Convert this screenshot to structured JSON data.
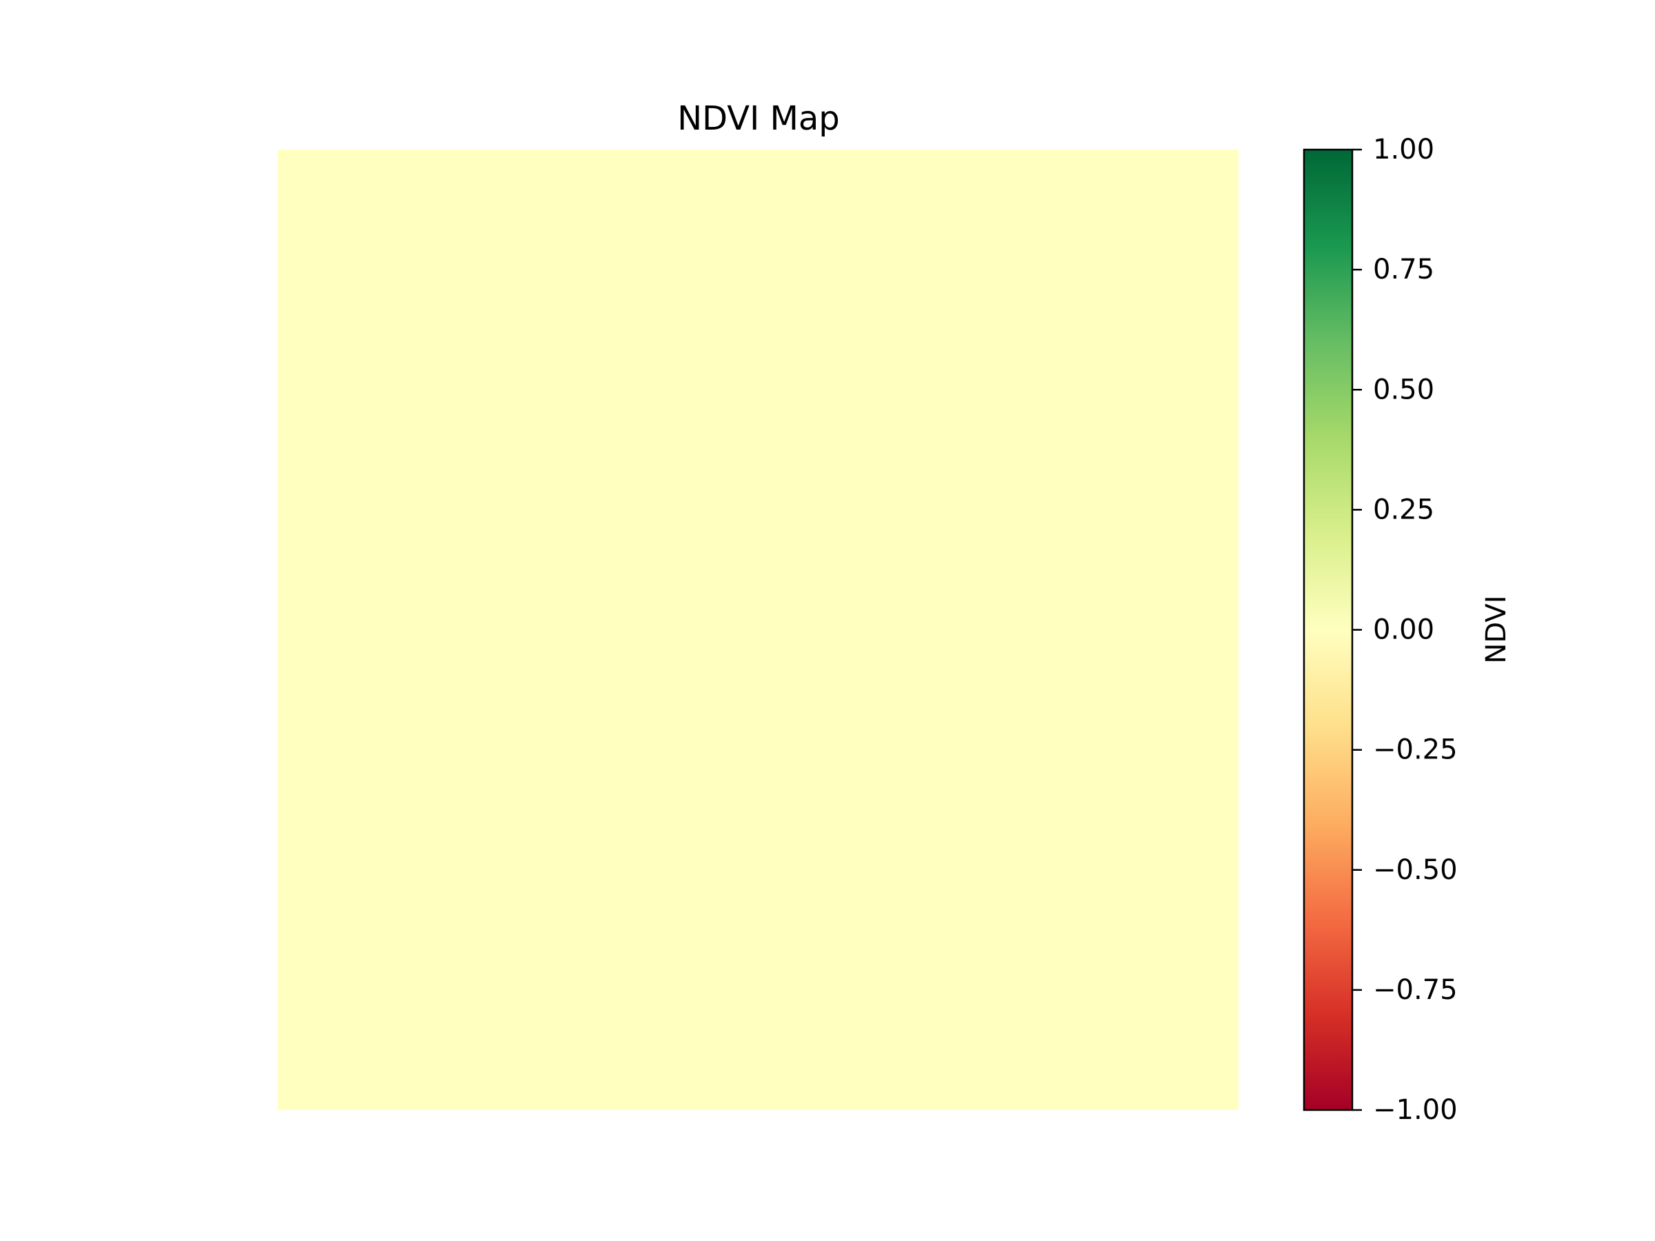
{
  "chart_data": {
    "type": "heatmap",
    "title": "NDVI Map",
    "values": [
      [
        0.0
      ]
    ],
    "colorbar": {
      "label": "NDVI",
      "colormap": "RdYlGn",
      "range": [
        -1.0,
        1.0
      ],
      "ticks": [
        1.0,
        0.75,
        0.5,
        0.25,
        0.0,
        -0.25,
        -0.5,
        -0.75,
        -1.0
      ],
      "tick_labels": [
        "1.00",
        "0.75",
        "0.50",
        "0.25",
        "0.00",
        "−0.25",
        "−0.50",
        "−0.75",
        "−1.00"
      ],
      "color_stops": [
        "#a50026",
        "#d73027",
        "#f46d43",
        "#fdae61",
        "#fee08b",
        "#ffffbf",
        "#d9ef8b",
        "#a6d96a",
        "#66bd63",
        "#1a9850",
        "#006837"
      ]
    },
    "axes_visible": false,
    "grid": false
  }
}
